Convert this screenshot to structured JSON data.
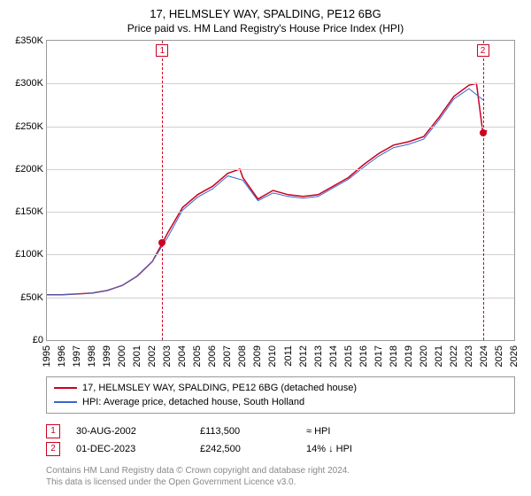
{
  "title": "17, HELMSLEY WAY, SPALDING, PE12 6BG",
  "subtitle": "Price paid vs. HM Land Registry's House Price Index (HPI)",
  "chart": {
    "type": "line",
    "xlim": [
      1995,
      2026
    ],
    "ylim": [
      0,
      350000
    ],
    "ytick_step": 50000,
    "ytick_prefix": "£",
    "ytick_labels": [
      "£0",
      "£50K",
      "£100K",
      "£150K",
      "£200K",
      "£250K",
      "£300K",
      "£350K"
    ],
    "xtick_step": 1,
    "background_color": "#ffffff",
    "grid_color": "#d0d0d0",
    "border_color": "#999999",
    "series": [
      {
        "name": "property",
        "label": "17, HELMSLEY WAY, SPALDING, PE12 6BG (detached house)",
        "color": "#cc0022",
        "width": 1.5,
        "points": [
          [
            1995,
            53000
          ],
          [
            1996,
            53000
          ],
          [
            1997,
            54000
          ],
          [
            1998,
            55000
          ],
          [
            1999,
            58000
          ],
          [
            2000,
            64000
          ],
          [
            2001,
            75000
          ],
          [
            2002,
            92000
          ],
          [
            2002.66,
            113500
          ],
          [
            2003,
            125000
          ],
          [
            2004,
            155000
          ],
          [
            2005,
            170000
          ],
          [
            2006,
            180000
          ],
          [
            2007,
            195000
          ],
          [
            2007.8,
            200000
          ],
          [
            2008,
            190000
          ],
          [
            2009,
            165000
          ],
          [
            2010,
            175000
          ],
          [
            2011,
            170000
          ],
          [
            2012,
            168000
          ],
          [
            2013,
            170000
          ],
          [
            2014,
            180000
          ],
          [
            2015,
            190000
          ],
          [
            2016,
            205000
          ],
          [
            2017,
            218000
          ],
          [
            2018,
            228000
          ],
          [
            2019,
            232000
          ],
          [
            2020,
            238000
          ],
          [
            2021,
            260000
          ],
          [
            2022,
            285000
          ],
          [
            2023,
            298000
          ],
          [
            2023.5,
            300000
          ],
          [
            2023.92,
            242500
          ],
          [
            2024.2,
            245000
          ]
        ]
      },
      {
        "name": "hpi",
        "label": "HPI: Average price, detached house, South Holland",
        "color": "#3a66cc",
        "width": 1.0,
        "points": [
          [
            1995,
            53000
          ],
          [
            1996,
            53000
          ],
          [
            1997,
            54000
          ],
          [
            1998,
            55000
          ],
          [
            1999,
            58000
          ],
          [
            2000,
            64000
          ],
          [
            2001,
            75000
          ],
          [
            2002,
            92000
          ],
          [
            2003,
            120000
          ],
          [
            2004,
            152000
          ],
          [
            2005,
            167000
          ],
          [
            2006,
            177000
          ],
          [
            2007,
            192000
          ],
          [
            2008,
            187000
          ],
          [
            2009,
            163000
          ],
          [
            2010,
            172000
          ],
          [
            2011,
            168000
          ],
          [
            2012,
            166000
          ],
          [
            2013,
            168000
          ],
          [
            2014,
            178000
          ],
          [
            2015,
            188000
          ],
          [
            2016,
            202000
          ],
          [
            2017,
            215000
          ],
          [
            2018,
            225000
          ],
          [
            2019,
            229000
          ],
          [
            2020,
            235000
          ],
          [
            2021,
            257000
          ],
          [
            2022,
            282000
          ],
          [
            2023,
            294000
          ],
          [
            2024,
            280000
          ]
        ]
      }
    ],
    "markers": [
      {
        "n": "1",
        "x": 2002.66,
        "y": 113500,
        "line_color": "#cc0022",
        "box_border": "#cc0022",
        "box_text": "#cc0022",
        "dot_color": "#cc0022"
      },
      {
        "n": "2",
        "x": 2023.92,
        "y": 242500,
        "line_color": "#cc0022",
        "box_border": "#cc0022",
        "box_text": "#cc0022",
        "dot_color": "#cc0022"
      }
    ]
  },
  "legend": [
    {
      "color": "#cc0022",
      "label": "17, HELMSLEY WAY, SPALDING, PE12 6BG (detached house)"
    },
    {
      "color": "#3a66cc",
      "label": "HPI: Average price, detached house, South Holland"
    }
  ],
  "sales": [
    {
      "n": "1",
      "box_color": "#cc0022",
      "date": "30-AUG-2002",
      "price": "£113,500",
      "delta": "≈ HPI"
    },
    {
      "n": "2",
      "box_color": "#cc0022",
      "date": "01-DEC-2023",
      "price": "£242,500",
      "delta": "14% ↓ HPI"
    }
  ],
  "footer": {
    "line1": "Contains HM Land Registry data © Crown copyright and database right 2024.",
    "line2": "This data is licensed under the Open Government Licence v3.0."
  }
}
